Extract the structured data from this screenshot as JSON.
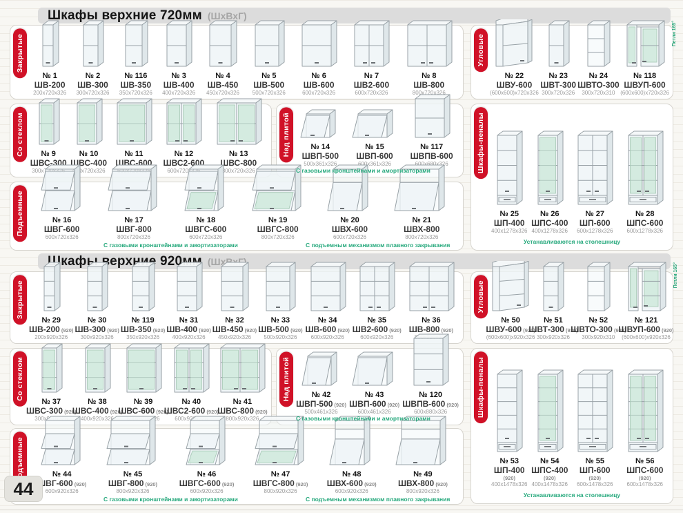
{
  "page": {
    "number": "44"
  },
  "colors": {
    "accent_red": "#d01127",
    "note_green": "#27a97d",
    "header_bar": "#dcdcdc"
  },
  "sections": [
    {
      "title": "Шкафы верхние 720мм",
      "subtitle": "(ШхВхГ)"
    },
    {
      "title": "Шкафы верхние 920мм",
      "subtitle": "(ШхВхГ)"
    }
  ],
  "panels": [
    {
      "id": "closed-720",
      "css": "p-a",
      "label": "Закрытые",
      "items": [
        {
          "num": "№ 1",
          "name": "ШВ-200",
          "dims": "200х720х326",
          "fig": {
            "t": "box",
            "d": 1,
            "s": 1
          }
        },
        {
          "num": "№ 2",
          "name": "ШВ-300",
          "dims": "300х720х326",
          "fig": {
            "t": "box",
            "d": 1,
            "s": 1
          }
        },
        {
          "num": "№ 116",
          "name": "ШВ-350",
          "dims": "350х720х326",
          "fig": {
            "t": "box",
            "d": 1,
            "s": 1
          }
        },
        {
          "num": "№ 3",
          "name": "ШВ-400",
          "dims": "400х720х326",
          "fig": {
            "t": "box",
            "d": 1,
            "s": 1
          }
        },
        {
          "num": "№ 4",
          "name": "ШВ-450",
          "dims": "450х720х326",
          "fig": {
            "t": "box",
            "d": 1,
            "s": 1
          }
        },
        {
          "num": "№ 5",
          "name": "ШВ-500",
          "dims": "500х720х326",
          "fig": {
            "t": "box",
            "d": 1,
            "s": 1
          }
        },
        {
          "num": "№ 6",
          "name": "ШВ-600",
          "dims": "600х720х326",
          "fig": {
            "t": "box",
            "d": 1,
            "s": 1
          }
        },
        {
          "num": "№ 7",
          "name": "ШВ2-600",
          "dims": "600х720х326",
          "fig": {
            "t": "box",
            "d": 2,
            "s": 1
          }
        },
        {
          "num": "№ 8",
          "name": "ШВ-800",
          "dims": "800х720х326",
          "fig": {
            "t": "box",
            "d": 2,
            "s": 1
          }
        }
      ]
    },
    {
      "id": "corner-720",
      "css": "p-b",
      "label": "Угловые",
      "items": [
        {
          "num": "№ 22",
          "name": "ШВУ-600",
          "dims": "(600х600)х720х326",
          "fig": {
            "t": "corner",
            "s": 1
          }
        },
        {
          "num": "№ 23",
          "name": "ШВТ-300",
          "dims": "300х720х326",
          "fig": {
            "t": "box",
            "d": 1,
            "s": 1
          }
        },
        {
          "num": "№ 24",
          "name": "ШВТО-300",
          "dims": "300х720х310",
          "fig": {
            "t": "cornerOpen",
            "s": 2
          }
        },
        {
          "num": "№ 118",
          "name": "ШВУП-600",
          "dims": "(600х600)х720х326",
          "side_note": "Петли 165°",
          "fig": {
            "t": "cornerL",
            "g": true,
            "s": 1
          }
        }
      ]
    },
    {
      "id": "glass-720",
      "css": "p-c",
      "label": "Со стеклом",
      "items": [
        {
          "num": "№ 9",
          "name": "ШВС-300",
          "dims": "300х720х326",
          "fig": {
            "t": "box",
            "d": 1,
            "s": 1,
            "g": true
          }
        },
        {
          "num": "№ 10",
          "name": "ШВС-400",
          "dims": "400х720х326",
          "fig": {
            "t": "box",
            "d": 1,
            "s": 1,
            "g": true
          }
        },
        {
          "num": "№ 11",
          "name": "ШВС-600",
          "dims": "600х720х326",
          "fig": {
            "t": "box",
            "d": 1,
            "s": 1,
            "g": true
          }
        },
        {
          "num": "№ 12",
          "name": "ШВС2-600",
          "dims": "600х720х326",
          "fig": {
            "t": "box",
            "d": 2,
            "s": 1,
            "g": true
          }
        },
        {
          "num": "№ 13",
          "name": "ШВС-800",
          "dims": "800х720х326",
          "fig": {
            "t": "box",
            "d": 2,
            "s": 1,
            "g": true
          }
        }
      ]
    },
    {
      "id": "stove-720",
      "css": "p-d",
      "label": "Над плитой",
      "items": [
        {
          "num": "№ 14",
          "name": "ШВП-500",
          "dims": "500х361х326",
          "fig": {
            "t": "hood"
          }
        },
        {
          "num": "№ 15",
          "name": "ШВП-600",
          "dims": "600х361х326",
          "fig": {
            "t": "hood"
          }
        },
        {
          "num": "№ 117",
          "name": "ШВПВ-600",
          "dims": "600х680х326",
          "fig": {
            "t": "tallbox",
            "s": 1
          }
        }
      ],
      "notes": [
        {
          "text": "С газовыми кронштейнами и амортизаторами",
          "pos": "left"
        }
      ]
    },
    {
      "id": "pencil-720",
      "css": "p-e",
      "label": "Шкафы-пеналы",
      "items": [
        {
          "num": "№ 25",
          "name": "ШП-400",
          "dims": "400х1278х326",
          "fig": {
            "t": "pencil",
            "d": 1,
            "s": 3
          }
        },
        {
          "num": "№ 26",
          "name": "ШПС-400",
          "dims": "400х1278х326",
          "fig": {
            "t": "pencil",
            "d": 1,
            "s": 3,
            "g": true
          }
        },
        {
          "num": "№ 27",
          "name": "ШП-600",
          "dims": "600х1278х326",
          "fig": {
            "t": "pencil",
            "d": 2,
            "s": 3
          }
        },
        {
          "num": "№ 28",
          "name": "ШПС-600",
          "dims": "600х1278х326",
          "fig": {
            "t": "pencil",
            "d": 2,
            "s": 3,
            "g": true
          }
        }
      ],
      "notes": [
        {
          "text": "Устанавливаются на столешницу",
          "pos": "center"
        }
      ]
    },
    {
      "id": "lift-720",
      "css": "p-f",
      "label": "Подъемные",
      "items": [
        {
          "num": "№ 16",
          "name": "ШВГ-600",
          "dims": "600х720х326",
          "fig": {
            "t": "lift2"
          }
        },
        {
          "num": "№ 17",
          "name": "ШВГ-800",
          "dims": "800х720х326",
          "fig": {
            "t": "lift2"
          }
        },
        {
          "num": "№ 18",
          "name": "ШВГС-600",
          "dims": "600х720х326",
          "fig": {
            "t": "lift2",
            "g": true
          }
        },
        {
          "num": "№ 19",
          "name": "ШВГС-800",
          "dims": "800х720х326",
          "fig": {
            "t": "lift2",
            "g": true
          }
        },
        {
          "num": "№ 20",
          "name": "ШВХ-600",
          "dims": "600х720х326",
          "fig": {
            "t": "lift"
          }
        },
        {
          "num": "№ 21",
          "name": "ШВХ-800",
          "dims": "800х720х326",
          "fig": {
            "t": "lift"
          }
        }
      ],
      "notes": [
        {
          "text": "С газовыми кронштейнами и амортизаторами",
          "pos": "mid"
        },
        {
          "text": "С подъемным механизмом плавного закрывания",
          "pos": "right"
        }
      ]
    },
    {
      "id": "closed-920",
      "css": "p-g",
      "label": "Закрытые",
      "items": [
        {
          "num": "№ 29",
          "name": "ШВ-200",
          "suffix": "(920)",
          "dims": "200х920х326",
          "fig": {
            "t": "box",
            "d": 1,
            "s": 2
          }
        },
        {
          "num": "№ 30",
          "name": "ШВ-300",
          "suffix": "(920)",
          "dims": "300х920х326",
          "fig": {
            "t": "box",
            "d": 1,
            "s": 2
          }
        },
        {
          "num": "№ 119",
          "name": "ШВ-350",
          "suffix": "(920)",
          "dims": "350х920х326",
          "fig": {
            "t": "box",
            "d": 1,
            "s": 2
          }
        },
        {
          "num": "№ 31",
          "name": "ШВ-400",
          "suffix": "(920)",
          "dims": "400х920х326",
          "fig": {
            "t": "box",
            "d": 1,
            "s": 2
          }
        },
        {
          "num": "№ 32",
          "name": "ШВ-450",
          "suffix": "(920)",
          "dims": "450х920х326",
          "fig": {
            "t": "box",
            "d": 1,
            "s": 2
          }
        },
        {
          "num": "№ 33",
          "name": "ШВ-500",
          "suffix": "(920)",
          "dims": "500х920х326",
          "fig": {
            "t": "box",
            "d": 1,
            "s": 2
          }
        },
        {
          "num": "№ 34",
          "name": "ШВ-600",
          "suffix": "(920)",
          "dims": "600х920х326",
          "fig": {
            "t": "box",
            "d": 1,
            "s": 2
          }
        },
        {
          "num": "№ 35",
          "name": "ШВ2-600",
          "suffix": "(920)",
          "dims": "600х920х326",
          "fig": {
            "t": "box",
            "d": 2,
            "s": 2
          }
        },
        {
          "num": "№ 36",
          "name": "ШВ-800",
          "suffix": "(920)",
          "dims": "800х920х326",
          "fig": {
            "t": "box",
            "d": 2,
            "s": 2
          }
        }
      ]
    },
    {
      "id": "corner-920",
      "css": "p-h",
      "label": "Угловые",
      "items": [
        {
          "num": "№ 50",
          "name": "ШВУ-600",
          "suffix": "(920)",
          "dims": "(600х600)х920х326",
          "fig": {
            "t": "corner",
            "s": 2
          }
        },
        {
          "num": "№ 51",
          "name": "ШВТ-300",
          "suffix": "(920)",
          "dims": "300х920х326",
          "fig": {
            "t": "box",
            "d": 1,
            "s": 2
          }
        },
        {
          "num": "№ 52",
          "name": "ШВТО-300",
          "suffix": "(920)",
          "dims": "300х920х310",
          "fig": {
            "t": "cornerOpen",
            "s": 2
          }
        },
        {
          "num": "№ 121",
          "name": "ШВУП-600",
          "suffix": "(920)",
          "dims": "(600х600)х920х326",
          "side_note": "Петли 165°",
          "fig": {
            "t": "cornerL",
            "g": true,
            "s": 2
          }
        }
      ]
    },
    {
      "id": "glass-920",
      "css": "p-i",
      "label": "Со стеклом",
      "items": [
        {
          "num": "№ 37",
          "name": "ШВС-300",
          "suffix": "(920)",
          "dims": "300х920х326",
          "fig": {
            "t": "box",
            "d": 1,
            "s": 2,
            "g": true
          }
        },
        {
          "num": "№ 38",
          "name": "ШВС-400",
          "suffix": "(920)",
          "dims": "400х920х326",
          "fig": {
            "t": "box",
            "d": 1,
            "s": 2,
            "g": true
          }
        },
        {
          "num": "№ 39",
          "name": "ШВС-600",
          "suffix": "(920)",
          "dims": "600х920х326",
          "fig": {
            "t": "box",
            "d": 1,
            "s": 2,
            "g": true
          }
        },
        {
          "num": "№ 40",
          "name": "ШВС2-600",
          "suffix": "(920)",
          "dims": "600х920х326",
          "fig": {
            "t": "box",
            "d": 2,
            "s": 2,
            "g": true
          }
        },
        {
          "num": "№ 41",
          "name": "ШВС-800",
          "suffix": "(920)",
          "dims": "800х920х326",
          "fig": {
            "t": "box",
            "d": 2,
            "s": 2,
            "g": true
          }
        }
      ]
    },
    {
      "id": "stove-920",
      "css": "p-j",
      "label": "Над плитой",
      "items": [
        {
          "num": "№ 42",
          "name": "ШВП-500",
          "suffix": "(920)",
          "dims": "500х461х326",
          "fig": {
            "t": "hood"
          }
        },
        {
          "num": "№ 43",
          "name": "ШВП-600",
          "suffix": "(920)",
          "dims": "600х461х326",
          "fig": {
            "t": "hood"
          }
        },
        {
          "num": "№ 120",
          "name": "ШВПВ-600",
          "suffix": "(920)",
          "dims": "600х880х326",
          "fig": {
            "t": "tallbox",
            "s": 2
          }
        }
      ],
      "notes": [
        {
          "text": "С газовыми кронштейнами и амортизаторами",
          "pos": "left"
        }
      ]
    },
    {
      "id": "pencil-920",
      "css": "p-k",
      "label": "Шкафы-пеналы",
      "items": [
        {
          "num": "№ 53",
          "name": "ШП-400",
          "suffix": "(920)",
          "suffix_block": true,
          "dims": "400х1478х326",
          "fig": {
            "t": "pencil",
            "d": 1,
            "s": 4
          }
        },
        {
          "num": "№ 54",
          "name": "ШПС-400",
          "suffix": "(920)",
          "suffix_block": true,
          "dims": "400х1478х326",
          "fig": {
            "t": "pencil",
            "d": 1,
            "s": 4,
            "g": true
          }
        },
        {
          "num": "№ 55",
          "name": "ШП-600",
          "suffix": "(920)",
          "suffix_block": true,
          "dims": "600х1478х326",
          "fig": {
            "t": "pencil",
            "d": 2,
            "s": 4
          }
        },
        {
          "num": "№ 56",
          "name": "ШПС-600",
          "suffix": "(920)",
          "suffix_block": true,
          "dims": "600х1478х326",
          "fig": {
            "t": "pencil",
            "d": 2,
            "s": 4,
            "g": true
          }
        }
      ],
      "notes": [
        {
          "text": "Устанавливаются на столешницу",
          "pos": "center"
        }
      ]
    },
    {
      "id": "lift-920",
      "css": "p-l",
      "label": "Подъемные",
      "items": [
        {
          "num": "№ 44",
          "name": "ШВГ-600",
          "suffix": "(920)",
          "dims": "600х920х326",
          "fig": {
            "t": "lift2",
            "o": true
          }
        },
        {
          "num": "№ 45",
          "name": "ШВГ-800",
          "suffix": "(920)",
          "dims": "800х920х326",
          "fig": {
            "t": "lift2",
            "o": true
          }
        },
        {
          "num": "№ 46",
          "name": "ШВГС-600",
          "suffix": "(920)",
          "dims": "600х920х326",
          "fig": {
            "t": "lift2",
            "g": true,
            "o": true
          }
        },
        {
          "num": "№ 47",
          "name": "ШВГС-800",
          "suffix": "(920)",
          "dims": "800х920х326",
          "fig": {
            "t": "lift2",
            "g": true,
            "o": true
          }
        },
        {
          "num": "№ 48",
          "name": "ШВХ-600",
          "suffix": "(920)",
          "dims": "600х920х326",
          "fig": {
            "t": "lift",
            "o": true
          }
        },
        {
          "num": "№ 49",
          "name": "ШВХ-800",
          "suffix": "(920)",
          "dims": "800х920х326",
          "fig": {
            "t": "lift",
            "o": true
          }
        }
      ],
      "notes": [
        {
          "text": "С газовыми кронштейнами и амортизаторами",
          "pos": "mid"
        },
        {
          "text": "С подъемным механизмом плавного закрывания",
          "pos": "right"
        }
      ]
    }
  ]
}
